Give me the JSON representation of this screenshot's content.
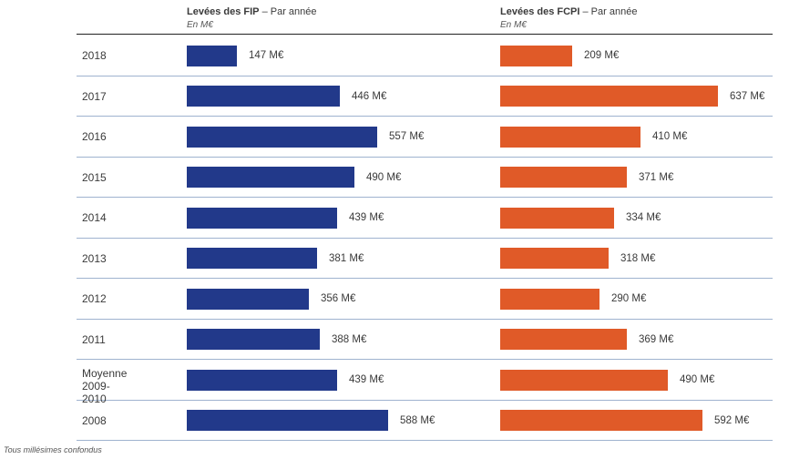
{
  "chart_data": {
    "type": "bar",
    "orientation": "horizontal",
    "categories": [
      "2018",
      "2017",
      "2016",
      "2015",
      "2014",
      "2013",
      "2012",
      "2011",
      "Moyenne\n2009-2010",
      "2008"
    ],
    "unit": "M€",
    "series": [
      {
        "name": "Levées des FIP",
        "subtitle": "– Par année",
        "unit_label": "En M€",
        "color": "#22398a",
        "values": [
          147,
          446,
          557,
          490,
          439,
          381,
          356,
          388,
          439,
          588
        ],
        "labels": [
          "147 M€",
          "446 M€",
          "557 M€",
          "490 M€",
          "439 M€",
          "381 M€",
          "356 M€",
          "388 M€",
          "439 M€",
          "588 M€"
        ]
      },
      {
        "name": "Levées des FCPI",
        "subtitle": "– Par année",
        "unit_label": "En M€",
        "color": "#e05a28",
        "values": [
          209,
          637,
          410,
          371,
          334,
          318,
          290,
          369,
          490,
          592
        ],
        "labels": [
          "209 M€",
          "637 M€",
          "410 M€",
          "371 M€",
          "334 M€",
          "318 M€",
          "290 M€",
          "369 M€",
          "490 M€",
          "592 M€"
        ]
      }
    ],
    "grid": false,
    "legend": "top"
  },
  "footnote": "Tous millésimes confondus"
}
